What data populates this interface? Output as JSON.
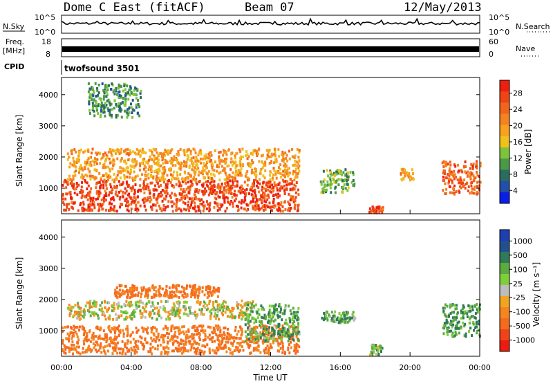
{
  "header": {
    "station": "Dome C East (fitACF)",
    "beam": "Beam 07",
    "date": "12/May/2013"
  },
  "strip_sky": {
    "left_label": "N.Sky",
    "right_label": "N.Search",
    "left_ticks": [
      "10^5",
      "10^0"
    ],
    "right_ticks": [
      "10^5",
      "10^0"
    ]
  },
  "strip_freq": {
    "left_label_1": "Freq.",
    "left_label_2": "[MHz]",
    "right_label": "Nave",
    "left_ticks": [
      "18",
      "8"
    ],
    "right_ticks": [
      "60",
      "0"
    ]
  },
  "strip_cpid": {
    "left_label": "CPID",
    "value": "twofsound 3501"
  },
  "axes": {
    "ylabel": "Slant Range [km]",
    "xlabel": "Time UT",
    "x_ticks": [
      "00:00",
      "04:00",
      "08:00",
      "12:00",
      "16:00",
      "20:00",
      "00:00"
    ],
    "y_ticks": [
      "1000",
      "2000",
      "3000",
      "4000"
    ]
  },
  "colorbars": {
    "power": {
      "label": "Power [dB]",
      "ticks": [
        "4",
        "8",
        "12",
        "16",
        "20",
        "24",
        "28"
      ],
      "colors": [
        "#0a1ee8",
        "#244fa6",
        "#2a6d5e",
        "#4a9948",
        "#7ec43a",
        "#f0c11c",
        "#f7a11e",
        "#f58321",
        "#f2641c",
        "#ef4416",
        "#ec1f10"
      ]
    },
    "velocity": {
      "label": "Velocity [m s⁻¹]",
      "ticks": [
        "1000",
        "500",
        "100",
        "25",
        "-25",
        "-100",
        "-500",
        "-1000"
      ],
      "colors": [
        "#1f3eb0",
        "#22508f",
        "#2f7a58",
        "#5cab3e",
        "#7fcf3b",
        "#bdbdbd",
        "#f0a420",
        "#f58520",
        "#f56b1e",
        "#f04418",
        "#ea1c10"
      ]
    }
  },
  "chart_data": [
    {
      "type": "heatmap",
      "title": "Power",
      "xlabel": "Time UT",
      "ylabel": "Slant Range [km]",
      "xlim": [
        "00:00",
        "24:00"
      ],
      "ylim": [
        180,
        4550
      ],
      "colorbar_label": "Power [dB]",
      "colorbar_ticks": [
        4,
        8,
        12,
        16,
        20,
        24,
        28
      ],
      "regions": [
        {
          "t_start": 0.0,
          "t_end": 13.6,
          "range_min": 300,
          "range_max": 1300,
          "value": 28
        },
        {
          "t_start": 0.3,
          "t_end": 13.6,
          "range_min": 1300,
          "range_max": 2300,
          "value": 20
        },
        {
          "t_start": 1.5,
          "t_end": 4.5,
          "range_min": 3300,
          "range_max": 4400,
          "value": 10
        },
        {
          "t_start": 14.8,
          "t_end": 16.8,
          "range_min": 900,
          "range_max": 1650,
          "value": 12
        },
        {
          "t_start": 17.6,
          "t_end": 18.4,
          "range_min": 250,
          "range_max": 450,
          "value": 28
        },
        {
          "t_start": 19.4,
          "t_end": 20.2,
          "range_min": 1300,
          "range_max": 1650,
          "value": 20
        },
        {
          "t_start": 21.8,
          "t_end": 24.0,
          "range_min": 850,
          "range_max": 1900,
          "value": 26
        }
      ]
    },
    {
      "type": "heatmap",
      "title": "Velocity",
      "xlabel": "Time UT",
      "ylabel": "Slant Range [km]",
      "xlim": [
        "00:00",
        "24:00"
      ],
      "ylim": [
        180,
        4550
      ],
      "colorbar_label": "Velocity [m s⁻¹]",
      "colorbar_ticks": [
        1000,
        500,
        100,
        25,
        -25,
        -100,
        -500,
        -1000
      ],
      "regions": [
        {
          "t_start": 0.0,
          "t_end": 13.6,
          "range_min": 300,
          "range_max": 1200,
          "value": -300
        },
        {
          "t_start": 0.3,
          "t_end": 11.0,
          "range_min": 1400,
          "range_max": 2000,
          "value": 0
        },
        {
          "t_start": 3.0,
          "t_end": 9.0,
          "range_min": 2100,
          "range_max": 2500,
          "value": -300
        },
        {
          "t_start": 10.5,
          "t_end": 13.6,
          "range_min": 700,
          "range_max": 1900,
          "value": 200
        },
        {
          "t_start": 14.8,
          "t_end": 16.8,
          "range_min": 1300,
          "range_max": 1650,
          "value": 200
        },
        {
          "t_start": 17.6,
          "t_end": 18.4,
          "range_min": 250,
          "range_max": 600,
          "value": 150
        },
        {
          "t_start": 21.8,
          "t_end": 24.0,
          "range_min": 850,
          "range_max": 1900,
          "value": 250
        }
      ]
    }
  ]
}
